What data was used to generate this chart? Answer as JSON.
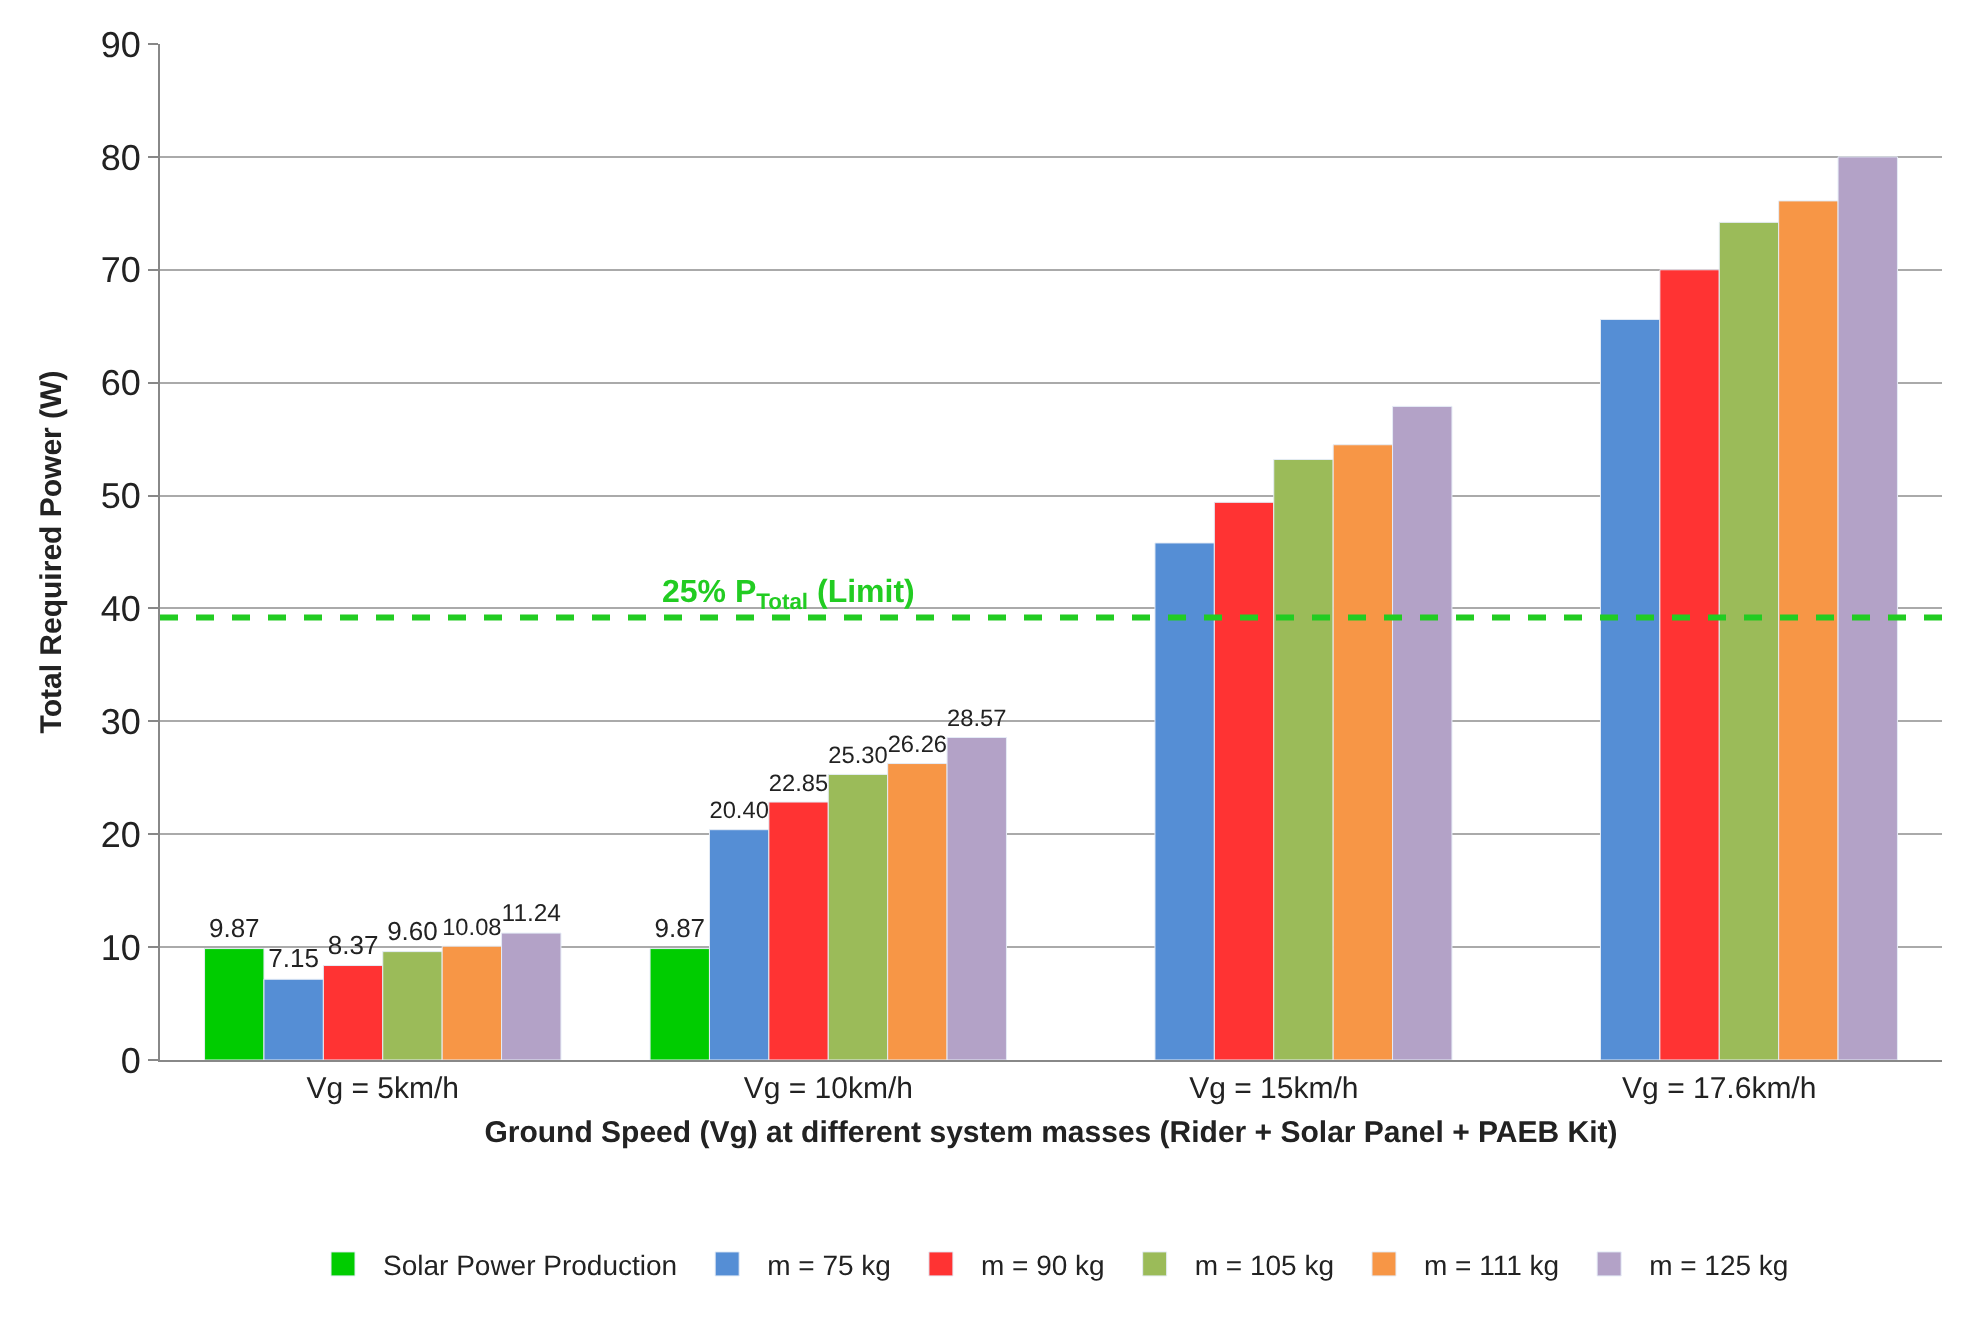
{
  "chart_data": {
    "type": "bar",
    "xlabel": "Ground Speed (Vg) at different system masses (Rider + Solar Panel + PAEB Kit)",
    "ylabel": "Total Required Power (W)",
    "categories": [
      "Vg = 5km/h",
      "Vg = 10km/h",
      "Vg = 15km/h",
      "Vg = 17.6km/h"
    ],
    "series": [
      {
        "name": "Solar Power Production",
        "color": "#00cc00",
        "values": [
          9.87,
          9.87,
          null,
          null
        ],
        "value_labels": [
          "9.87",
          "9.87",
          null,
          null
        ]
      },
      {
        "name": "m = 75 kg",
        "color": "#558ed5",
        "values": [
          7.15,
          20.4,
          45.8,
          65.6
        ],
        "value_labels": [
          "7.15",
          "20.40",
          null,
          null
        ]
      },
      {
        "name": "m = 90 kg",
        "color": "#ff3333",
        "values": [
          8.37,
          22.85,
          49.4,
          70.0
        ],
        "value_labels": [
          "8.37",
          "22.85",
          null,
          null
        ]
      },
      {
        "name": "m = 105 kg",
        "color": "#9bbb59",
        "values": [
          9.6,
          25.3,
          53.2,
          74.2
        ],
        "value_labels": [
          "9.60",
          "25.30",
          null,
          null
        ]
      },
      {
        "name": "m = 111 kg",
        "color": "#f79646",
        "values": [
          10.08,
          26.26,
          54.5,
          76.1
        ],
        "value_labels": [
          "10.08",
          "26.26",
          null,
          null
        ]
      },
      {
        "name": "m = 125 kg",
        "color": "#b3a2c7",
        "values": [
          11.24,
          28.57,
          57.9,
          80.0
        ],
        "value_labels": [
          "11.24",
          "28.57",
          null,
          null
        ]
      }
    ],
    "ylim": [
      0,
      90
    ],
    "yticks": [
      0,
      10,
      20,
      30,
      40,
      50,
      60,
      70,
      80,
      90
    ],
    "grid": "y",
    "legend": "bottom",
    "ref_lines": [
      {
        "axis": "y",
        "value": 39.2,
        "label": "25% P$_{Total}$ (Limit)",
        "color": "#22cc22",
        "line_style": "dashed"
      }
    ]
  }
}
